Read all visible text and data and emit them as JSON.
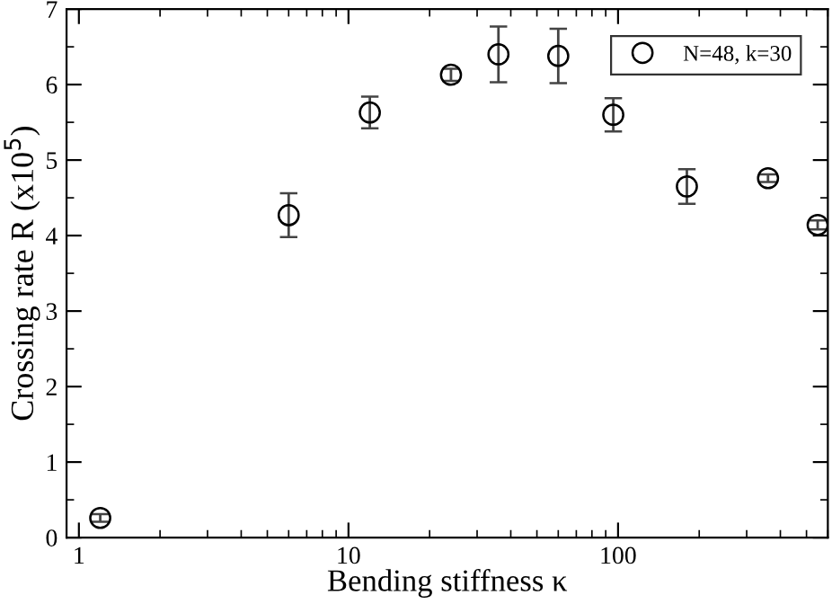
{
  "chart_data": {
    "type": "scatter",
    "xlabel": "Bending stiffness κ",
    "ylabel": "Crossing rate R (x10$^{5}$)",
    "log": "x",
    "xlim": [
      0.9,
      600
    ],
    "xticks": [
      1,
      10,
      100
    ],
    "ylim": [
      0,
      7
    ],
    "yticks": [
      0,
      1,
      2,
      3,
      4,
      5,
      6,
      7
    ],
    "grid": false,
    "legend": "top right",
    "marker": "circle",
    "series": [
      {
        "name": "N=48, k=30",
        "color": "#000000",
        "x": [
          1.2,
          6,
          12,
          24,
          36,
          60,
          96,
          180,
          360,
          550
        ],
        "values": [
          0.26,
          4.27,
          5.63,
          6.13,
          6.4,
          6.38,
          5.6,
          4.65,
          4.76,
          4.14
        ],
        "errors": [
          0.05,
          0.29,
          0.21,
          0.08,
          0.37,
          0.36,
          0.22,
          0.23,
          0.05,
          0.06
        ]
      }
    ]
  }
}
